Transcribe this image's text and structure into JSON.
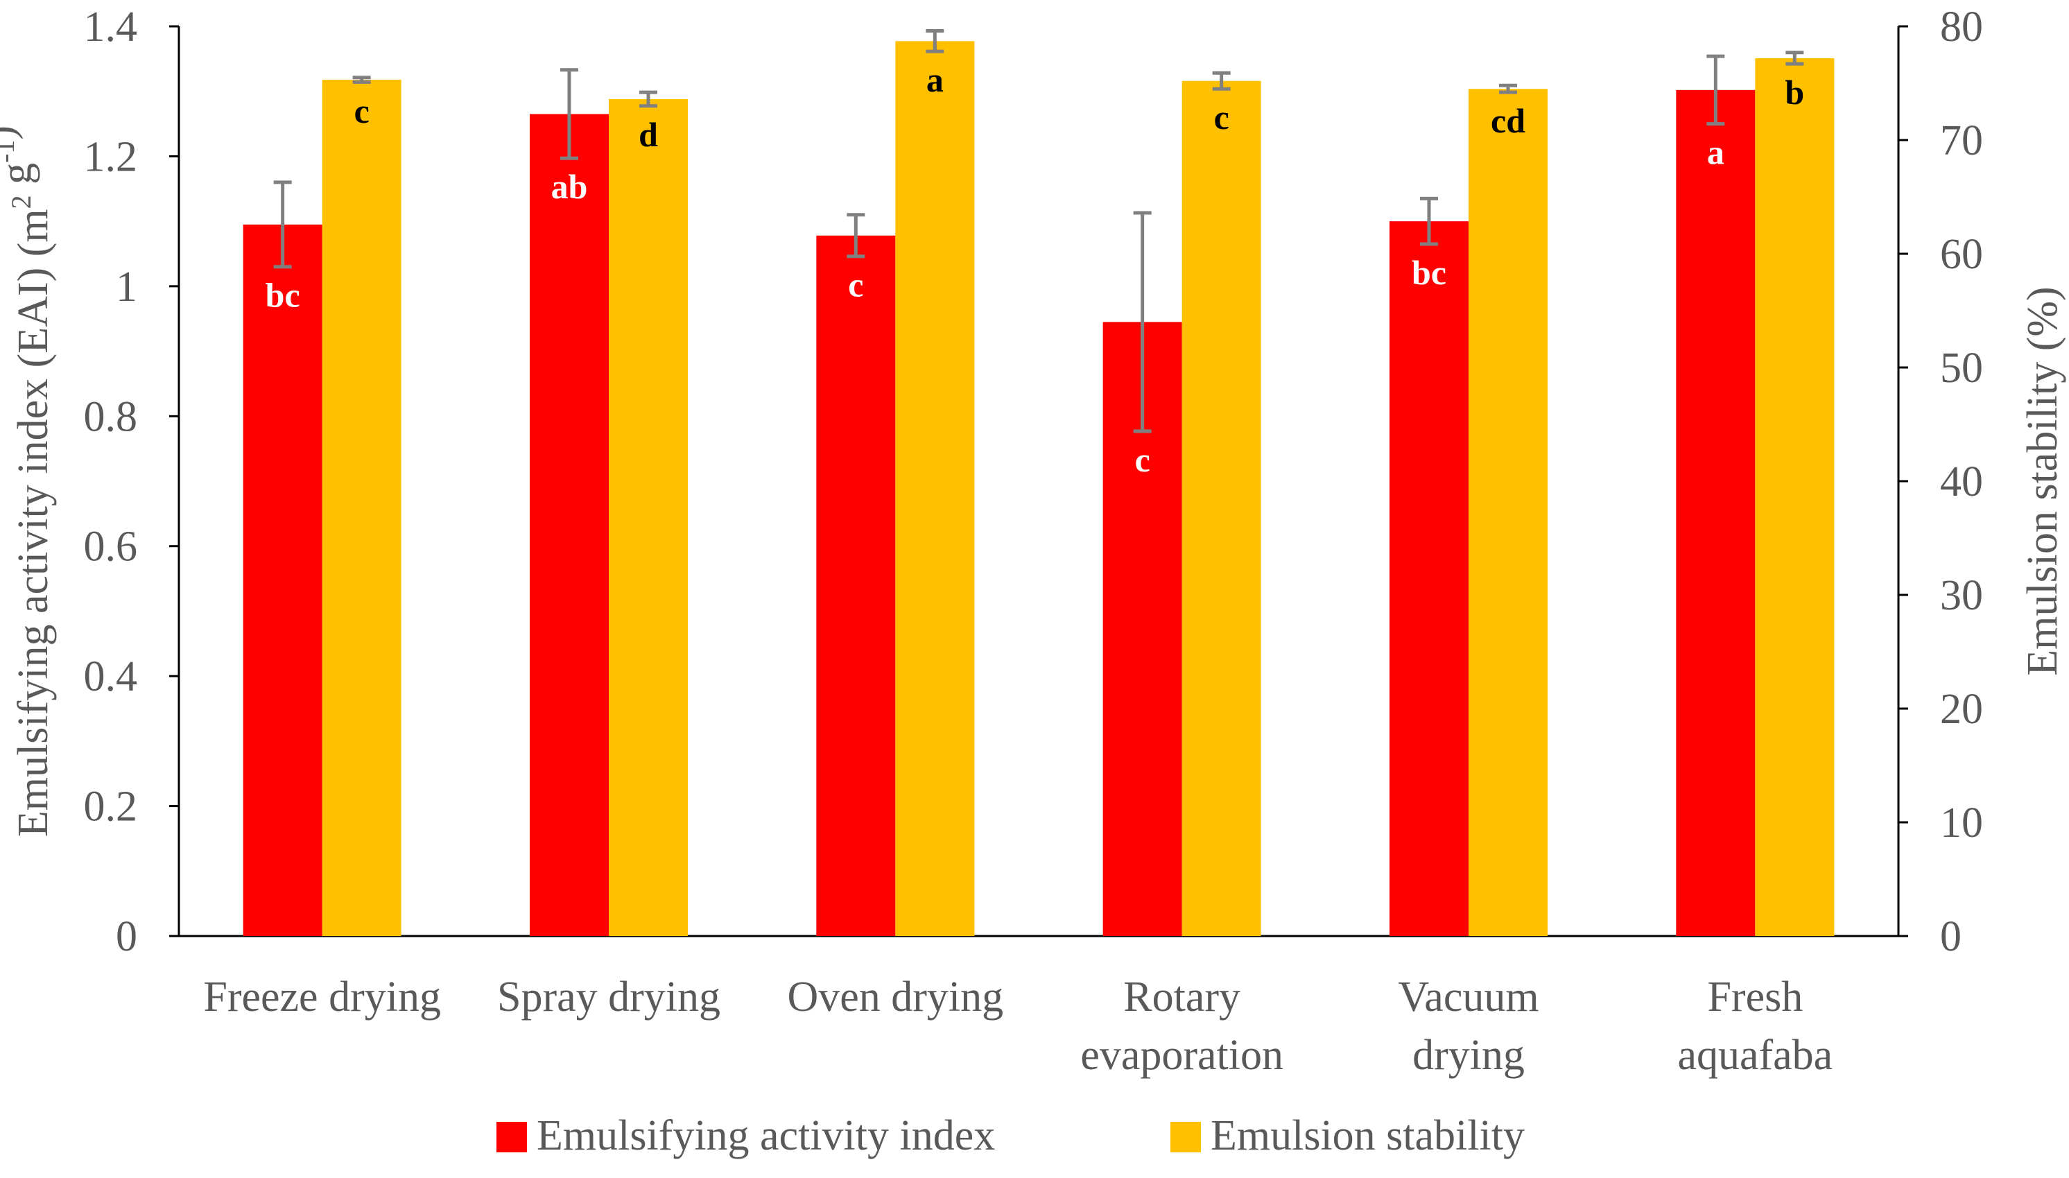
{
  "chart_data": {
    "type": "bar",
    "categories": [
      [
        "Freeze drying"
      ],
      [
        "Spray drying"
      ],
      [
        "Oven drying"
      ],
      [
        "Rotary",
        "evaporation"
      ],
      [
        "Vacuum",
        "drying"
      ],
      [
        "Fresh",
        "aquafaba"
      ]
    ],
    "left_axis": {
      "label_main": "Emulsifying activity index (EAI) (m",
      "label_sup1": "2",
      "label_mid": " g",
      "label_sup2": "-1",
      "label_end": ")",
      "ylim": [
        0,
        1.4
      ],
      "ticks": [
        "0",
        "0.2",
        "0.4",
        "0.6",
        "0.8",
        "1",
        "1.2",
        "1.4"
      ]
    },
    "right_axis": {
      "label": "Emulsion stability (%)",
      "ylim": [
        0,
        80
      ],
      "ticks": [
        "0",
        "10",
        "20",
        "30",
        "40",
        "50",
        "60",
        "70",
        "80"
      ]
    },
    "series": [
      {
        "name": "Emulsifying activity index",
        "axis": "left",
        "color": "#ff0000",
        "letter_color": "#ffffff",
        "values": [
          1.095,
          1.265,
          1.078,
          0.945,
          1.1,
          1.302
        ],
        "errors": [
          0.065,
          0.068,
          0.032,
          0.168,
          0.035,
          0.052
        ],
        "letters": [
          "bc",
          "ab",
          "c",
          "c",
          "bc",
          "a"
        ]
      },
      {
        "name": "Emulsion stability",
        "axis": "right",
        "color": "#ffc000",
        "letter_color": "#000000",
        "values": [
          75.3,
          73.6,
          78.7,
          75.2,
          74.5,
          77.2
        ],
        "errors": [
          0.2,
          0.6,
          0.9,
          0.7,
          0.3,
          0.5
        ],
        "letters": [
          "c",
          "d",
          "a",
          "c",
          "cd",
          "b"
        ]
      }
    ],
    "legend_position": "bottom-center",
    "grid": false
  }
}
